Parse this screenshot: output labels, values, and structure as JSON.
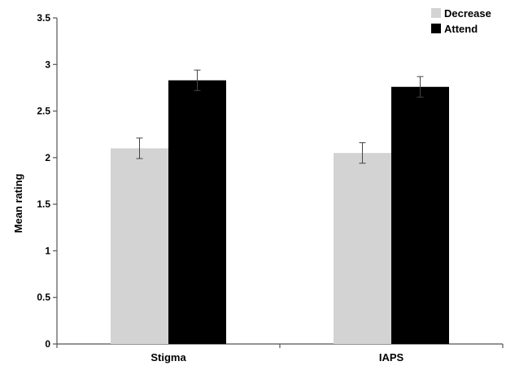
{
  "chart_data": {
    "type": "bar",
    "title": "",
    "xlabel": "",
    "ylabel": "Mean rating",
    "ylim": [
      0,
      3.5
    ],
    "yticks": [
      "0",
      "0.5",
      "1",
      "1.5",
      "2",
      "2.5",
      "3",
      "3.5"
    ],
    "categories": [
      "Stigma",
      "IAPS"
    ],
    "series": [
      {
        "name": "Decrease",
        "color": "#d3d3d3",
        "values": [
          2.1,
          2.05
        ],
        "errors": [
          0.11,
          0.11
        ]
      },
      {
        "name": "Attend",
        "color": "#000000",
        "values": [
          2.83,
          2.76
        ],
        "errors": [
          0.11,
          0.11
        ]
      }
    ],
    "grid": false,
    "legend_position": "top-right",
    "error_bars": true
  }
}
